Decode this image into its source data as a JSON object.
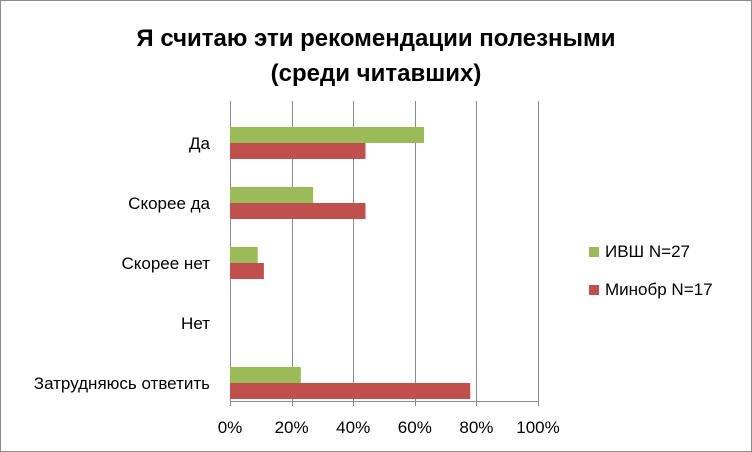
{
  "chart_data": {
    "type": "bar",
    "orientation": "horizontal",
    "title_line1": "Я считаю эти рекомендации полезными",
    "title_line2": "(среди читавших)",
    "categories": [
      "Да",
      "Скорее да",
      "Скорее нет",
      "Нет",
      "Затрудняюсь ответить"
    ],
    "series": [
      {
        "name": "ИВШ N=27",
        "color": "#9bbb59",
        "values": [
          63,
          27,
          9,
          0,
          23
        ]
      },
      {
        "name": "Минобр N=17",
        "color": "#c0504d",
        "values": [
          44,
          44,
          11,
          0,
          78
        ]
      }
    ],
    "xlim": [
      0,
      100
    ],
    "x_ticks": [
      "0%",
      "20%",
      "40%",
      "60%",
      "80%",
      "100%"
    ],
    "x_tick_values": [
      0,
      20,
      40,
      60,
      80,
      100
    ],
    "grid": "vertical",
    "legend_position": "right"
  }
}
